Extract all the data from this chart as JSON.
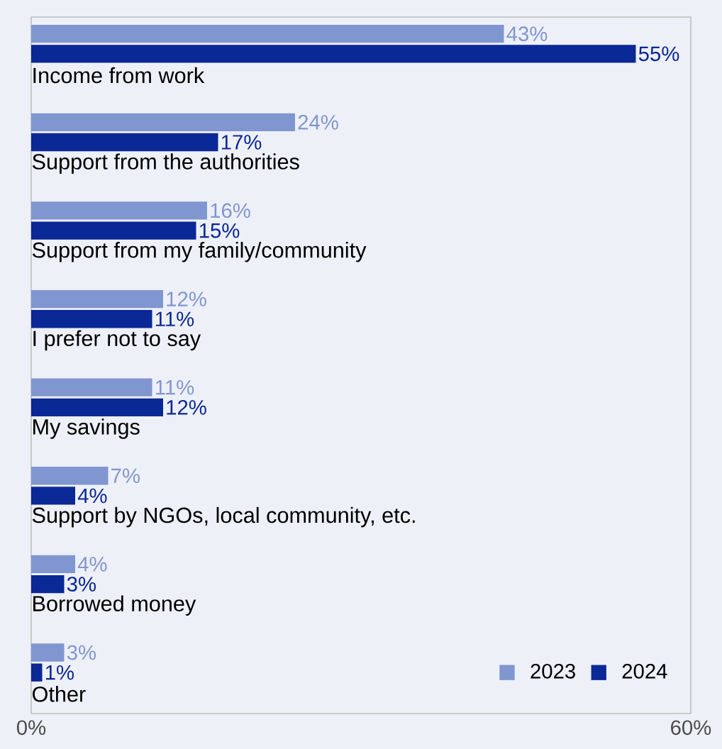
{
  "chart_data": {
    "type": "bar",
    "orientation": "horizontal",
    "categories": [
      "Income from work",
      "Support from the authorities",
      "Support from my family/community",
      "I prefer not to say",
      "My savings",
      "Support by NGOs, local community, etc.",
      "Borrowed money",
      "Other"
    ],
    "series": [
      {
        "name": "2023",
        "color": "#8096d0",
        "values": [
          43,
          24,
          16,
          12,
          11,
          7,
          4,
          3
        ],
        "value_labels": [
          "43%",
          "24%",
          "16%",
          "12%",
          "11%",
          "7%",
          "4%",
          "3%"
        ]
      },
      {
        "name": "2024",
        "color": "#0a2896",
        "values": [
          55,
          17,
          15,
          11,
          12,
          4,
          3,
          1
        ],
        "value_labels": [
          "55%",
          "17%",
          "15%",
          "11%",
          "12%",
          "4%",
          "3%",
          "1%"
        ]
      }
    ],
    "xlim": [
      0,
      60
    ],
    "xticks": [
      {
        "value": 0,
        "label": "0%"
      },
      {
        "value": 60,
        "label": "60%"
      }
    ],
    "legend": "bottom right"
  }
}
